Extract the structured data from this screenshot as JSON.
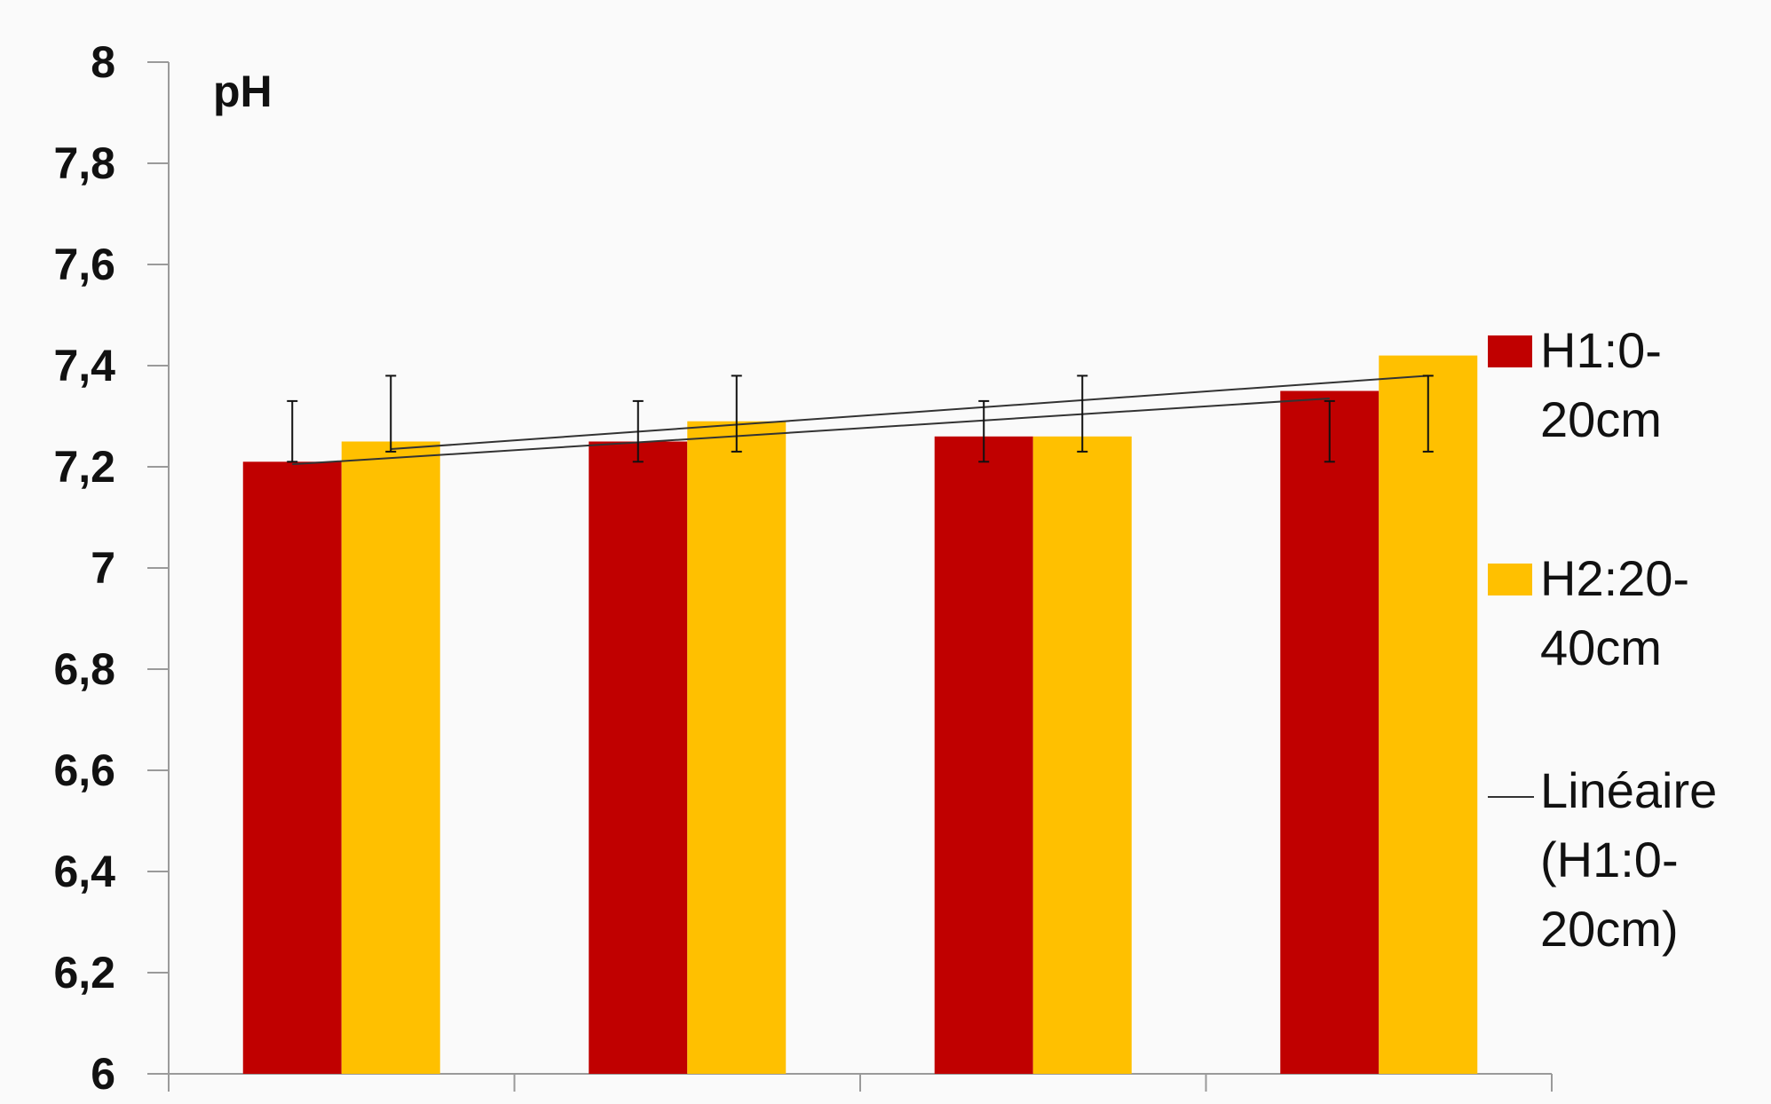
{
  "chart_data": {
    "type": "bar",
    "title": "",
    "xlabel": "",
    "ylabel": "",
    "unit_label": "pH",
    "categories": [
      "",
      "",
      "",
      ""
    ],
    "ylim": [
      6,
      8
    ],
    "yticks": [
      "6",
      "6,2",
      "6,4",
      "6,6",
      "6,8",
      "7",
      "7,2",
      "7,4",
      "7,6",
      "7,8",
      "8"
    ],
    "grid": false,
    "legend_position": "right",
    "series": [
      {
        "name": "H1:0-20cm",
        "legend_lines": [
          "H1:0-",
          "20cm"
        ],
        "color": "#c00000",
        "values": [
          7.21,
          7.25,
          7.26,
          7.35
        ],
        "error_low": [
          7.21,
          7.21,
          7.21,
          7.21
        ],
        "error_high": [
          7.33,
          7.33,
          7.33,
          7.33
        ]
      },
      {
        "name": "H2:20-40cm",
        "legend_lines": [
          "H2:20-",
          "40cm"
        ],
        "color": "#ffc000",
        "values": [
          7.25,
          7.29,
          7.26,
          7.42
        ],
        "error_low": [
          7.23,
          7.23,
          7.23,
          7.23
        ],
        "error_high": [
          7.38,
          7.38,
          7.38,
          7.38
        ]
      }
    ],
    "trendlines": [
      {
        "name": "Linéaire (H1:0-20cm)",
        "legend_lines": [
          "Linéaire",
          "(H1:0-",
          "20cm)"
        ],
        "series_index": 0,
        "start": 7.205,
        "end": 7.335,
        "color": "#333333",
        "show_in_legend": true
      },
      {
        "series_index": 1,
        "start": 7.235,
        "end": 7.38,
        "color": "#333333",
        "show_in_legend": false
      }
    ]
  }
}
